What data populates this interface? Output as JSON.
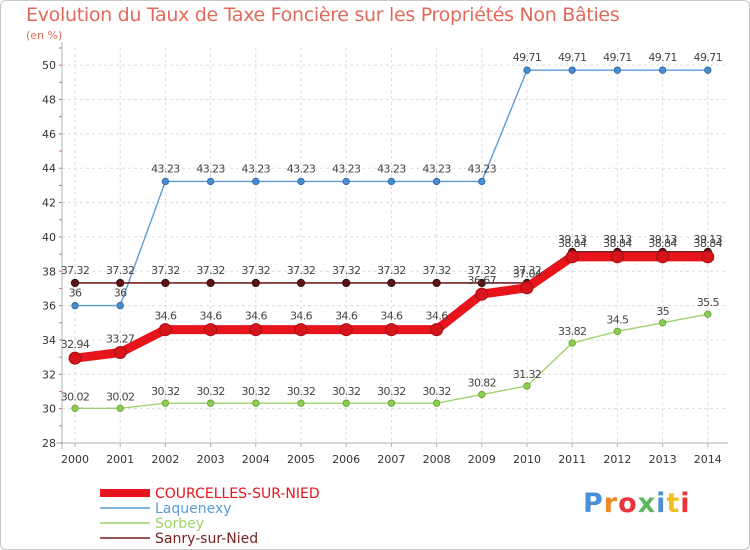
{
  "chart_data": {
    "type": "line",
    "title": "Evolution du Taux de Taxe Foncière sur les Propriétés Non Bâties",
    "ylabel": "(en %)",
    "xlabel": "",
    "x": [
      "2000",
      "2001",
      "2002",
      "2003",
      "2004",
      "2005",
      "2006",
      "2007",
      "2008",
      "2009",
      "2010",
      "2011",
      "2012",
      "2013",
      "2014"
    ],
    "ylim": [
      28,
      51
    ],
    "yticks": [
      28,
      30,
      32,
      34,
      36,
      38,
      40,
      42,
      44,
      46,
      48,
      50
    ],
    "grid": true,
    "legend_position": "bottom-left",
    "series": [
      {
        "name": "COURCELLES-SUR-NIED",
        "color": "#e8141b",
        "values": [
          32.94,
          33.27,
          34.6,
          34.6,
          34.6,
          34.6,
          34.6,
          34.6,
          34.6,
          36.67,
          37.04,
          38.84,
          38.84,
          38.84,
          38.84
        ],
        "labels": [
          "32.94",
          "33.27",
          "34.6",
          "34.6",
          "34.6",
          "34.6",
          "34.6",
          "34.6",
          "34.6",
          "36.67",
          "37.04",
          "38.84",
          "38.84",
          "38.84",
          "38.84"
        ]
      },
      {
        "name": "Laquenexy",
        "color": "#5b9bd5",
        "values": [
          36,
          36,
          43.23,
          43.23,
          43.23,
          43.23,
          43.23,
          43.23,
          43.23,
          43.23,
          49.71,
          49.71,
          49.71,
          49.71,
          49.71
        ],
        "labels": [
          "36",
          "36",
          "43.23",
          "43.23",
          "43.23",
          "43.23",
          "43.23",
          "43.23",
          "43.23",
          "43.23",
          "49.71",
          "49.71",
          "49.71",
          "49.71",
          "49.71"
        ]
      },
      {
        "name": "Sorbey",
        "color": "#9ed36a",
        "values": [
          30.02,
          30.02,
          30.32,
          30.32,
          30.32,
          30.32,
          30.32,
          30.32,
          30.32,
          30.82,
          31.32,
          33.82,
          34.5,
          35,
          35.5
        ],
        "labels": [
          "30.02",
          "30.02",
          "30.32",
          "30.32",
          "30.32",
          "30.32",
          "30.32",
          "30.32",
          "30.32",
          "30.82",
          "31.32",
          "33.82",
          "34.5",
          "35",
          "35.5"
        ]
      },
      {
        "name": "Sanry-sur-Nied",
        "color": "#7a2020",
        "values": [
          37.32,
          37.32,
          37.32,
          37.32,
          37.32,
          37.32,
          37.32,
          37.32,
          37.32,
          37.32,
          37.32,
          39.13,
          39.13,
          39.13,
          39.13
        ],
        "labels": [
          "37.32",
          "37.32",
          "37.32",
          "37.32",
          "37.32",
          "37.32",
          "37.32",
          "37.32",
          "37.32",
          "37.32",
          "37.32",
          "39.13",
          "39.13",
          "39.13",
          "39.13"
        ]
      }
    ]
  },
  "branding": {
    "logo_text": "Proxiti"
  }
}
